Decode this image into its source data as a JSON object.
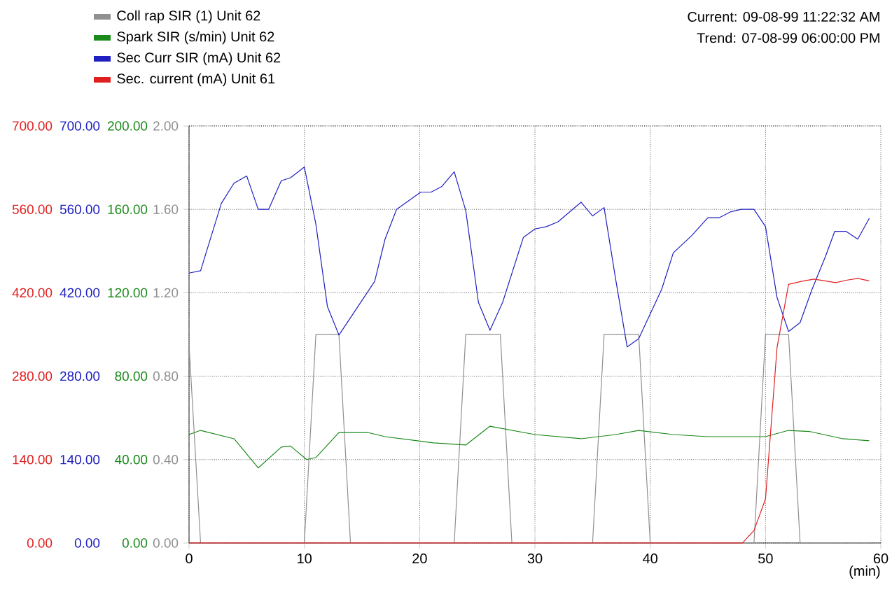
{
  "chart_data": {
    "type": "line",
    "xlabel": "(min)",
    "annotations": [
      "Current: 09-08-99 11:22:32 AM",
      "Trend: 07-08-99 06:00:00 PM"
    ],
    "xlim": [
      0,
      60
    ],
    "xticks": [
      0,
      10,
      20,
      30,
      40,
      50,
      60
    ],
    "ylim": [
      0,
      2
    ],
    "yticks": [
      {
        "value": 0,
        "label": "0.00"
      },
      {
        "value": 0.4,
        "label": "0.40"
      },
      {
        "value": 0.8,
        "label": "0.80"
      },
      {
        "value": 1.2,
        "label": "1.20"
      },
      {
        "value": 1.6,
        "label": "1.60"
      },
      {
        "value": 2,
        "label": "2.00"
      }
    ],
    "y2lim": [
      0,
      200
    ],
    "y2ticks": [
      {
        "value": 0,
        "label": "0.00"
      },
      {
        "value": 40,
        "label": "40.00"
      },
      {
        "value": 80,
        "label": "80.00"
      },
      {
        "value": 120,
        "label": "120.00"
      },
      {
        "value": 160,
        "label": "160.00"
      },
      {
        "value": 200,
        "label": "200.00"
      }
    ],
    "y3lim": [
      0,
      700
    ],
    "y3ticks": [
      {
        "value": 0,
        "label": "0.00"
      },
      {
        "value": 140,
        "label": "140.00"
      },
      {
        "value": 280,
        "label": "280.00"
      },
      {
        "value": 420,
        "label": "420.00"
      },
      {
        "value": 560,
        "label": "560.00"
      },
      {
        "value": 700,
        "label": "700.00"
      }
    ],
    "grid": true,
    "legend": "top left",
    "line_style": "solid",
    "series": [
      {
        "name": "Coll rap SIR (1) Unit 62",
        "color": "#909090",
        "axis": "y",
        "x": [
          0,
          1,
          10,
          11,
          13,
          14,
          23,
          24,
          27,
          28,
          35,
          36,
          39,
          40,
          49,
          50,
          52,
          53,
          59
        ],
        "values": [
          0.95,
          0,
          0,
          1.0,
          1.0,
          0,
          0,
          1.0,
          1.0,
          0,
          0,
          1.0,
          1.0,
          0,
          0,
          1.0,
          1.0,
          0,
          0
        ]
      },
      {
        "name": "Spark SIR (s/min) Unit 62",
        "color": "#1a8a1a",
        "axis": "y2",
        "x": [
          0,
          1,
          3.9,
          6,
          8,
          8.8,
          10.2,
          11,
          13,
          15.5,
          17,
          19.8,
          21.2,
          24,
          26.1,
          30,
          34,
          37,
          39,
          42,
          45,
          50,
          52,
          53.8,
          56.7,
          59
        ],
        "values": [
          52,
          54,
          50,
          36,
          46,
          46.5,
          40,
          41,
          53,
          53,
          51,
          49,
          48,
          47,
          56,
          52,
          50,
          52,
          54,
          52,
          51,
          51,
          54,
          53.5,
          50,
          49
        ]
      },
      {
        "name": "Sec Curr SIR (mA) Unit 62",
        "color": "#2020c0",
        "axis": "y3",
        "x": [
          0,
          1,
          2.8,
          3.9,
          5,
          6,
          6.9,
          8,
          8.8,
          10,
          11,
          12,
          13,
          14.1,
          16.1,
          17,
          18,
          20.1,
          21,
          21.9,
          23,
          24,
          25.1,
          26.1,
          27.2,
          29,
          30,
          31,
          32,
          34,
          35,
          36,
          37,
          38,
          39,
          41,
          42,
          43.6,
          45,
          46,
          47,
          47.9,
          49,
          50,
          51,
          52,
          53,
          54,
          55.2,
          56,
          57,
          58,
          59
        ],
        "values": [
          453,
          457,
          570,
          604,
          616,
          560,
          560,
          608,
          613,
          631,
          535,
          397,
          349,
          381,
          439,
          510,
          560,
          589,
          589,
          598,
          623,
          558,
          404,
          357,
          404,
          513,
          527,
          531,
          539,
          572,
          549,
          563,
          443,
          329,
          343,
          426,
          487,
          516,
          546,
          546,
          556,
          560,
          560,
          531,
          412,
          355,
          370,
          424,
          481,
          523,
          523,
          510,
          545
        ]
      },
      {
        "name": "Sec. current (mA) Unit 61",
        "color": "#e02020",
        "axis": "y3",
        "x": [
          0,
          48,
          49,
          50,
          51,
          52,
          53.1,
          54.2,
          56.1,
          57,
          58,
          59
        ],
        "values": [
          0,
          0,
          21,
          74,
          328,
          434,
          439,
          443,
          437,
          441,
          444,
          440
        ]
      }
    ]
  }
}
